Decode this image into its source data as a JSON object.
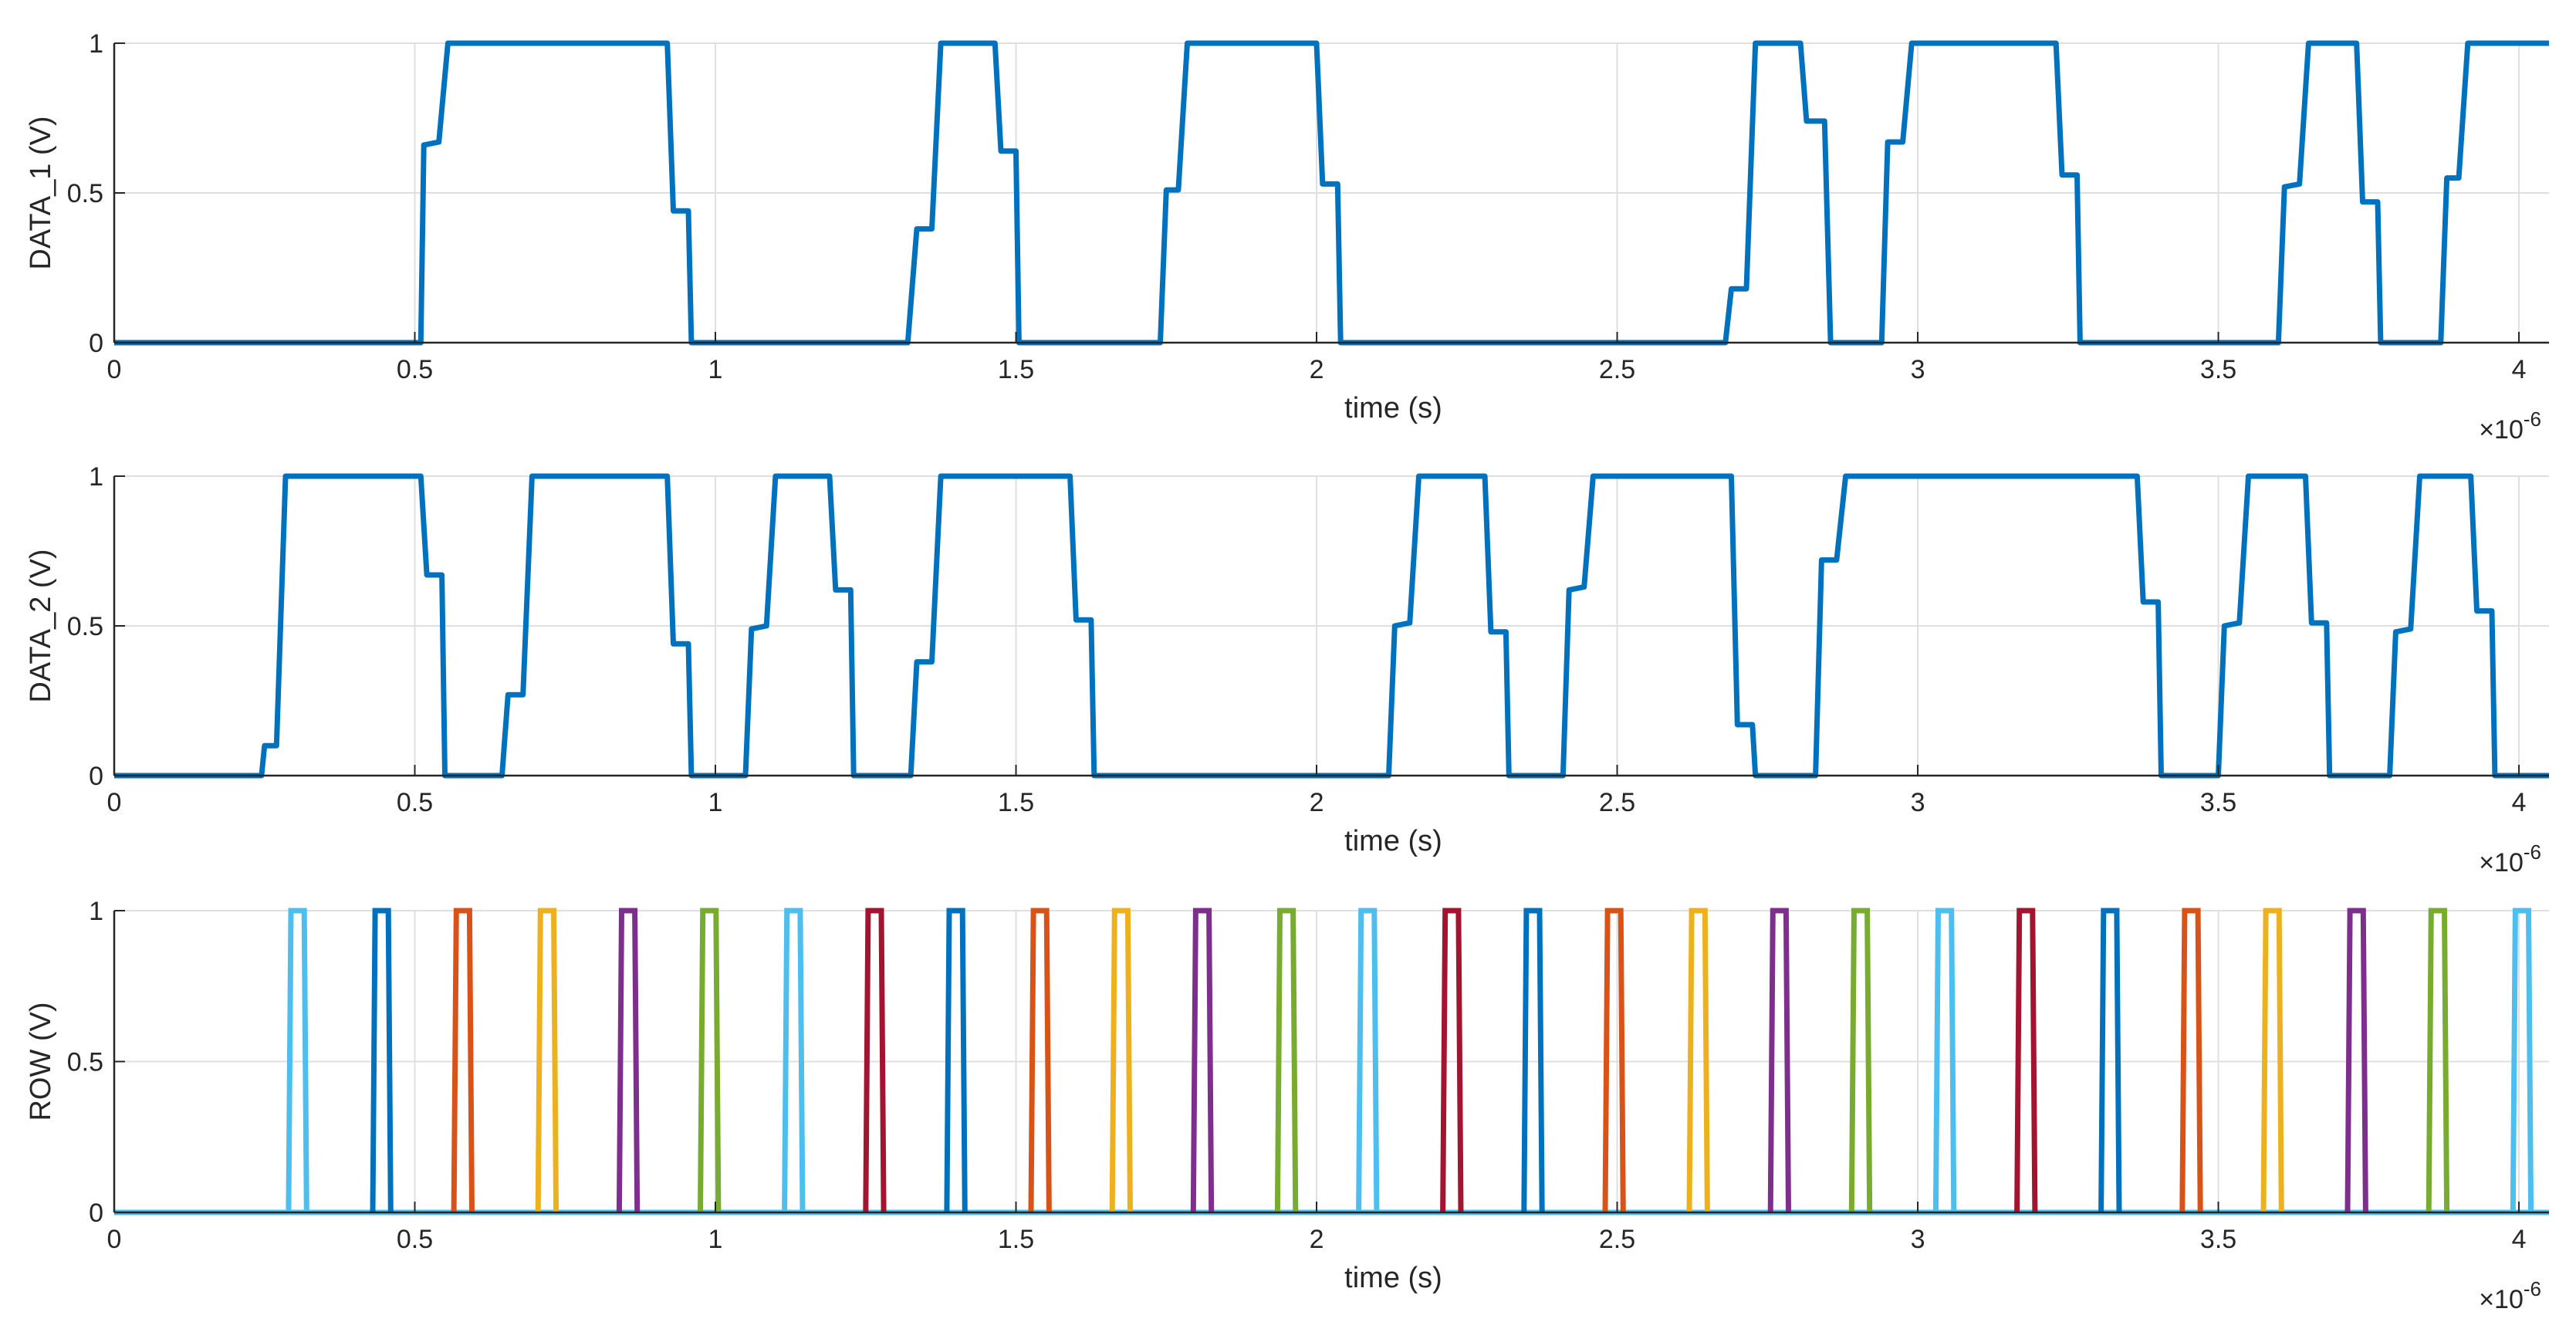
{
  "figure": {
    "background": "#ffffff",
    "grid_color": "#dfdfdf",
    "axis_color": "#262626"
  },
  "chart_data": [
    {
      "type": "line",
      "xlabel": "time (s)",
      "ylabel": "DATA_1 (V)",
      "xlim": [
        0,
        4.05
      ],
      "ylim": [
        0,
        1
      ],
      "x_ticks": [
        "0",
        "0.5",
        "1",
        "1.5",
        "2",
        "2.5",
        "3",
        "3.5",
        "4"
      ],
      "y_ticks": [
        "0",
        "0.5",
        "1"
      ],
      "x_multiplier_base": "×10",
      "x_multiplier_exponent": "-6",
      "grid": true,
      "series": [
        {
          "color": "#0072BD",
          "points": [
            [
              0,
              0
            ],
            [
              0.51,
              0
            ],
            [
              0.515,
              0.66
            ],
            [
              0.54,
              0.67
            ],
            [
              0.555,
              1
            ],
            [
              0.92,
              1
            ],
            [
              0.93,
              0.44
            ],
            [
              0.955,
              0.44
            ],
            [
              0.96,
              0
            ],
            [
              1.32,
              0
            ],
            [
              1.335,
              0.38
            ],
            [
              1.36,
              0.38
            ],
            [
              1.375,
              1
            ],
            [
              1.465,
              1
            ],
            [
              1.475,
              0.64
            ],
            [
              1.5,
              0.64
            ],
            [
              1.505,
              0
            ],
            [
              1.74,
              0
            ],
            [
              1.75,
              0.51
            ],
            [
              1.77,
              0.51
            ],
            [
              1.785,
              1
            ],
            [
              2.0,
              1
            ],
            [
              2.01,
              0.53
            ],
            [
              2.035,
              0.53
            ],
            [
              2.04,
              0
            ],
            [
              2.68,
              0
            ],
            [
              2.69,
              0.18
            ],
            [
              2.715,
              0.18
            ],
            [
              2.73,
              1
            ],
            [
              2.805,
              1
            ],
            [
              2.815,
              0.74
            ],
            [
              2.845,
              0.74
            ],
            [
              2.855,
              0
            ],
            [
              2.94,
              0
            ],
            [
              2.95,
              0.67
            ],
            [
              2.975,
              0.67
            ],
            [
              2.99,
              1
            ],
            [
              3.23,
              1
            ],
            [
              3.24,
              0.56
            ],
            [
              3.265,
              0.56
            ],
            [
              3.27,
              0
            ],
            [
              3.6,
              0
            ],
            [
              3.61,
              0.52
            ],
            [
              3.635,
              0.53
            ],
            [
              3.65,
              1
            ],
            [
              3.73,
              1
            ],
            [
              3.74,
              0.47
            ],
            [
              3.765,
              0.47
            ],
            [
              3.77,
              0
            ],
            [
              3.87,
              0
            ],
            [
              3.88,
              0.55
            ],
            [
              3.9,
              0.55
            ],
            [
              3.915,
              1
            ],
            [
              4.05,
              1
            ]
          ]
        }
      ]
    },
    {
      "type": "line",
      "xlabel": "time (s)",
      "ylabel": "DATA_2 (V)",
      "xlim": [
        0,
        4.05
      ],
      "ylim": [
        0,
        1
      ],
      "x_ticks": [
        "0",
        "0.5",
        "1",
        "1.5",
        "2",
        "2.5",
        "3",
        "3.5",
        "4"
      ],
      "y_ticks": [
        "0",
        "0.5",
        "1"
      ],
      "x_multiplier_base": "×10",
      "x_multiplier_exponent": "-6",
      "grid": true,
      "series": [
        {
          "color": "#0072BD",
          "points": [
            [
              0,
              0
            ],
            [
              0.245,
              0
            ],
            [
              0.25,
              0.1
            ],
            [
              0.27,
              0.1
            ],
            [
              0.285,
              1
            ],
            [
              0.51,
              1
            ],
            [
              0.52,
              0.67
            ],
            [
              0.545,
              0.67
            ],
            [
              0.55,
              0
            ],
            [
              0.645,
              0
            ],
            [
              0.655,
              0.27
            ],
            [
              0.68,
              0.27
            ],
            [
              0.695,
              1
            ],
            [
              0.92,
              1
            ],
            [
              0.93,
              0.44
            ],
            [
              0.955,
              0.44
            ],
            [
              0.96,
              0
            ],
            [
              1.05,
              0
            ],
            [
              1.06,
              0.49
            ],
            [
              1.085,
              0.5
            ],
            [
              1.1,
              1
            ],
            [
              1.19,
              1
            ],
            [
              1.2,
              0.62
            ],
            [
              1.225,
              0.62
            ],
            [
              1.23,
              0
            ],
            [
              1.325,
              0
            ],
            [
              1.335,
              0.38
            ],
            [
              1.36,
              0.38
            ],
            [
              1.375,
              1
            ],
            [
              1.59,
              1
            ],
            [
              1.6,
              0.52
            ],
            [
              1.625,
              0.52
            ],
            [
              1.63,
              0
            ],
            [
              2.12,
              0
            ],
            [
              2.13,
              0.5
            ],
            [
              2.155,
              0.51
            ],
            [
              2.17,
              1
            ],
            [
              2.28,
              1
            ],
            [
              2.29,
              0.48
            ],
            [
              2.315,
              0.48
            ],
            [
              2.32,
              0
            ],
            [
              2.41,
              0
            ],
            [
              2.42,
              0.62
            ],
            [
              2.445,
              0.63
            ],
            [
              2.46,
              1
            ],
            [
              2.69,
              1
            ],
            [
              2.7,
              0.17
            ],
            [
              2.725,
              0.17
            ],
            [
              2.73,
              0
            ],
            [
              2.83,
              0
            ],
            [
              2.84,
              0.72
            ],
            [
              2.865,
              0.72
            ],
            [
              2.88,
              1
            ],
            [
              3.365,
              1
            ],
            [
              3.375,
              0.58
            ],
            [
              3.4,
              0.58
            ],
            [
              3.405,
              0
            ],
            [
              3.5,
              0
            ],
            [
              3.51,
              0.5
            ],
            [
              3.535,
              0.51
            ],
            [
              3.55,
              1
            ],
            [
              3.645,
              1
            ],
            [
              3.655,
              0.51
            ],
            [
              3.68,
              0.51
            ],
            [
              3.685,
              0
            ],
            [
              3.785,
              0
            ],
            [
              3.795,
              0.48
            ],
            [
              3.82,
              0.49
            ],
            [
              3.835,
              1
            ],
            [
              3.92,
              1
            ],
            [
              3.93,
              0.55
            ],
            [
              3.955,
              0.55
            ],
            [
              3.96,
              0
            ],
            [
              4.05,
              0
            ]
          ]
        }
      ]
    },
    {
      "type": "line",
      "xlabel": "time (s)",
      "ylabel": "ROW (V)",
      "xlim": [
        0,
        4.05
      ],
      "ylim": [
        0,
        1
      ],
      "x_ticks": [
        "0",
        "0.5",
        "1",
        "1.5",
        "2",
        "2.5",
        "3",
        "3.5",
        "4"
      ],
      "y_ticks": [
        "0",
        "0.5",
        "1"
      ],
      "x_multiplier_base": "×10",
      "x_multiplier_exponent": "-6",
      "grid": true,
      "pulse_width": 0.03,
      "pulse_edge": 0.004,
      "pulses": [
        {
          "start": 0.29,
          "color": "#4DBEEE"
        },
        {
          "start": 0.43,
          "color": "#0072BD"
        },
        {
          "start": 0.565,
          "color": "#D95319"
        },
        {
          "start": 0.705,
          "color": "#EDB120"
        },
        {
          "start": 0.84,
          "color": "#7E2F8E"
        },
        {
          "start": 0.975,
          "color": "#77AC30"
        },
        {
          "start": 1.115,
          "color": "#4DBEEE"
        },
        {
          "start": 1.25,
          "color": "#A2142F"
        },
        {
          "start": 1.385,
          "color": "#0072BD"
        },
        {
          "start": 1.525,
          "color": "#D95319"
        },
        {
          "start": 1.66,
          "color": "#EDB120"
        },
        {
          "start": 1.795,
          "color": "#7E2F8E"
        },
        {
          "start": 1.935,
          "color": "#77AC30"
        },
        {
          "start": 2.07,
          "color": "#4DBEEE"
        },
        {
          "start": 2.21,
          "color": "#A2142F"
        },
        {
          "start": 2.345,
          "color": "#0072BD"
        },
        {
          "start": 2.48,
          "color": "#D95319"
        },
        {
          "start": 2.62,
          "color": "#EDB120"
        },
        {
          "start": 2.755,
          "color": "#7E2F8E"
        },
        {
          "start": 2.89,
          "color": "#77AC30"
        },
        {
          "start": 3.03,
          "color": "#4DBEEE"
        },
        {
          "start": 3.165,
          "color": "#A2142F"
        },
        {
          "start": 3.305,
          "color": "#0072BD"
        },
        {
          "start": 3.44,
          "color": "#D95319"
        },
        {
          "start": 3.575,
          "color": "#EDB120"
        },
        {
          "start": 3.715,
          "color": "#7E2F8E"
        },
        {
          "start": 3.85,
          "color": "#77AC30"
        },
        {
          "start": 3.99,
          "color": "#4DBEEE"
        }
      ]
    }
  ]
}
